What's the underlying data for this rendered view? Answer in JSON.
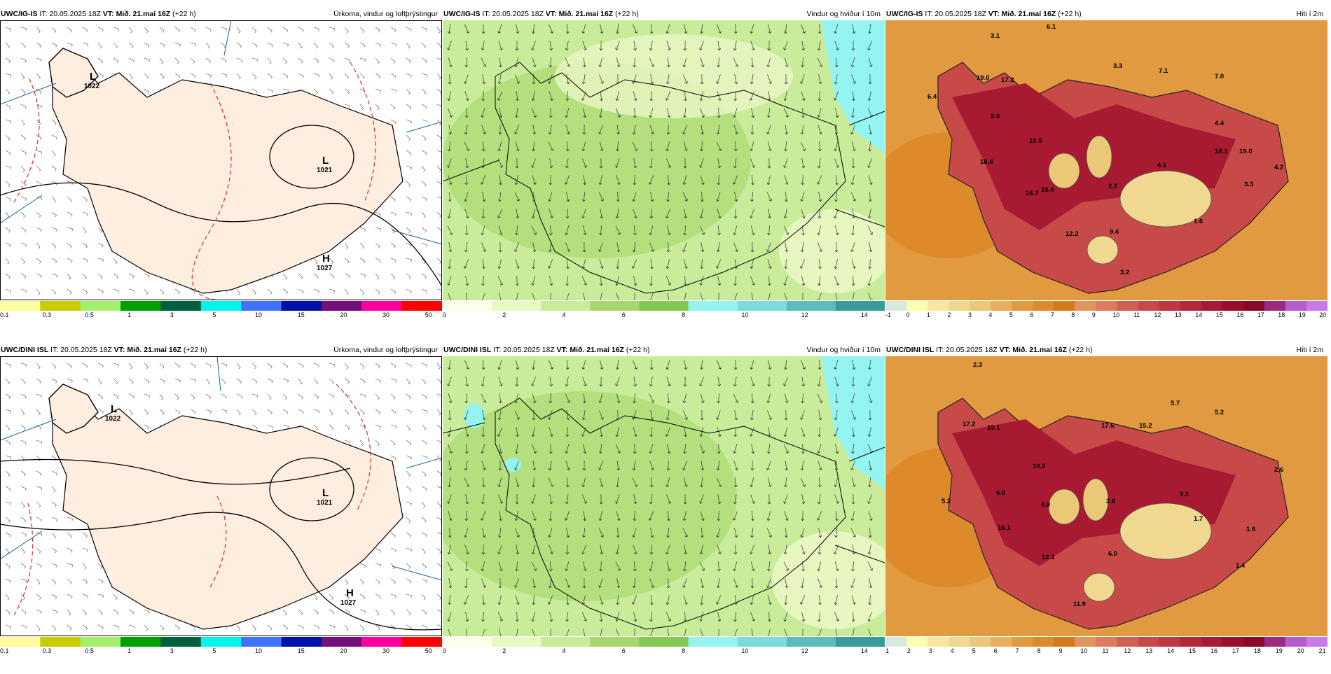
{
  "panels": [
    {
      "model": "UWC/IG-IS",
      "it": "IT: 20.05.2025 18Z",
      "vt": "VT: Mið. 21.maí 16Z",
      "lead": "(+22 h)",
      "title": "Úrkoma, vindur og loftþrýstingur",
      "highs_lows": [
        {
          "type": "L",
          "value": "1022"
        },
        {
          "type": "L",
          "value": "1021"
        },
        {
          "type": "H",
          "value": "1027"
        }
      ],
      "ticks": [
        "0.1",
        "0.3",
        "0.5",
        "1",
        "3",
        "5",
        "10",
        "15",
        "20",
        "30",
        "50"
      ]
    },
    {
      "model": "UWC/IG-IS",
      "it": "IT: 20.05.2025 18Z",
      "vt": "VT: Mið. 21.maí 16Z",
      "lead": "(+22 h)",
      "title": "Vindur og hviður í 10m",
      "ticks": [
        "0",
        "2",
        "4",
        "6",
        "8",
        "10",
        "12",
        "14"
      ]
    },
    {
      "model": "UWC/IG-IS",
      "it": "IT: 20.05.2025 18Z",
      "vt": "VT: Mið. 21.maí 16Z",
      "lead": "(+22 h)",
      "title": "Hiti í 2m",
      "temps": [
        "6.1",
        "3.1",
        "19.0",
        "17.2",
        "6.4",
        "9.6",
        "19.5",
        "18.4",
        "16.7",
        "18.4",
        "2.2",
        "12.2",
        "9.4",
        "3.2",
        "3.3",
        "7.1",
        "7.0",
        "4.4",
        "18.1",
        "19.0",
        "4.1",
        "3.3",
        "4.2",
        "1.6"
      ],
      "ticks": [
        "-1",
        "0",
        "1",
        "2",
        "3",
        "4",
        "5",
        "6",
        "7",
        "8",
        "9",
        "10",
        "11",
        "12",
        "13",
        "14",
        "15",
        "16",
        "17",
        "18",
        "19",
        "20"
      ]
    },
    {
      "model": "UWC/DINI ISL",
      "it": "IT: 20.05.2025 18Z",
      "vt": "VT: Mið. 21.maí 16Z",
      "lead": "(+22 h)",
      "title": "Úrkoma, vindur og loftþrýstingur",
      "highs_lows": [
        {
          "type": "L",
          "value": "1022"
        },
        {
          "type": "L",
          "value": "1021"
        },
        {
          "type": "H",
          "value": "1027"
        }
      ],
      "ticks": [
        "0.1",
        "0.3",
        "0.5",
        "1",
        "3",
        "5",
        "10",
        "15",
        "20",
        "30",
        "50"
      ]
    },
    {
      "model": "UWC/DINI ISL",
      "it": "IT: 20.05.2025 18Z",
      "vt": "VT: Mið. 21.maí 16Z",
      "lead": "(+22 h)",
      "title": "Vindur og hviður í 10m",
      "ticks": [
        "0",
        "2",
        "4",
        "6",
        "8",
        "10",
        "12",
        "14"
      ]
    },
    {
      "model": "UWC/DINI ISL",
      "it": "IT: 20.05.2025 18Z",
      "vt": "VT: Mið. 21.maí 16Z",
      "lead": "(+22 h)",
      "title": "Hiti í 2m",
      "temps": [
        "2.3",
        "17.2",
        "19.1",
        "17.6",
        "15.2",
        "5.7",
        "5.2",
        "10.2",
        "2.6",
        "5.2",
        "6.9",
        "4.9",
        "2.6",
        "5.1",
        "1.7",
        "1.6",
        "16.1",
        "12.1",
        "6.0",
        "1.4",
        "11.9"
      ],
      "ticks": [
        "1",
        "2",
        "3",
        "4",
        "5",
        "6",
        "7",
        "8",
        "9",
        "10",
        "11",
        "12",
        "13",
        "14",
        "15",
        "16",
        "17",
        "18",
        "19",
        "20",
        "21"
      ]
    }
  ],
  "palettes": {
    "precip": [
      "#fdfd9b",
      "#c8cc00",
      "#a2f06b",
      "#00a000",
      "#005f3c",
      "#00f5ec",
      "#3f73ff",
      "#0010a8",
      "#730f7a",
      "#ff009e",
      "#ff0000"
    ],
    "wind": [
      "#fdfde8",
      "#eaf8c4",
      "#c9ec9a",
      "#a5d86a",
      "#84c852",
      "#94f5f0",
      "#7cdcdc",
      "#5cbcbc",
      "#3a9a9a"
    ],
    "temp": [
      "#d8eadc",
      "#fdfdb0",
      "#f6e6a0",
      "#f0d890",
      "#ebc878",
      "#e6b060",
      "#e29a40",
      "#dd8a2a",
      "#d67a1a",
      "#e09560",
      "#dd7a60",
      "#d26050",
      "#c84a48",
      "#be3640",
      "#b42838",
      "#a81a32",
      "#9a0e2c",
      "#8a0828",
      "#9c2a80",
      "#b85ccc",
      "#c87ae8"
    ]
  },
  "colors": {
    "land_precip": "#fdeee0",
    "isobar": "#000000",
    "contour_red": "#d03030",
    "sea_blue": "#8ce0e8"
  }
}
